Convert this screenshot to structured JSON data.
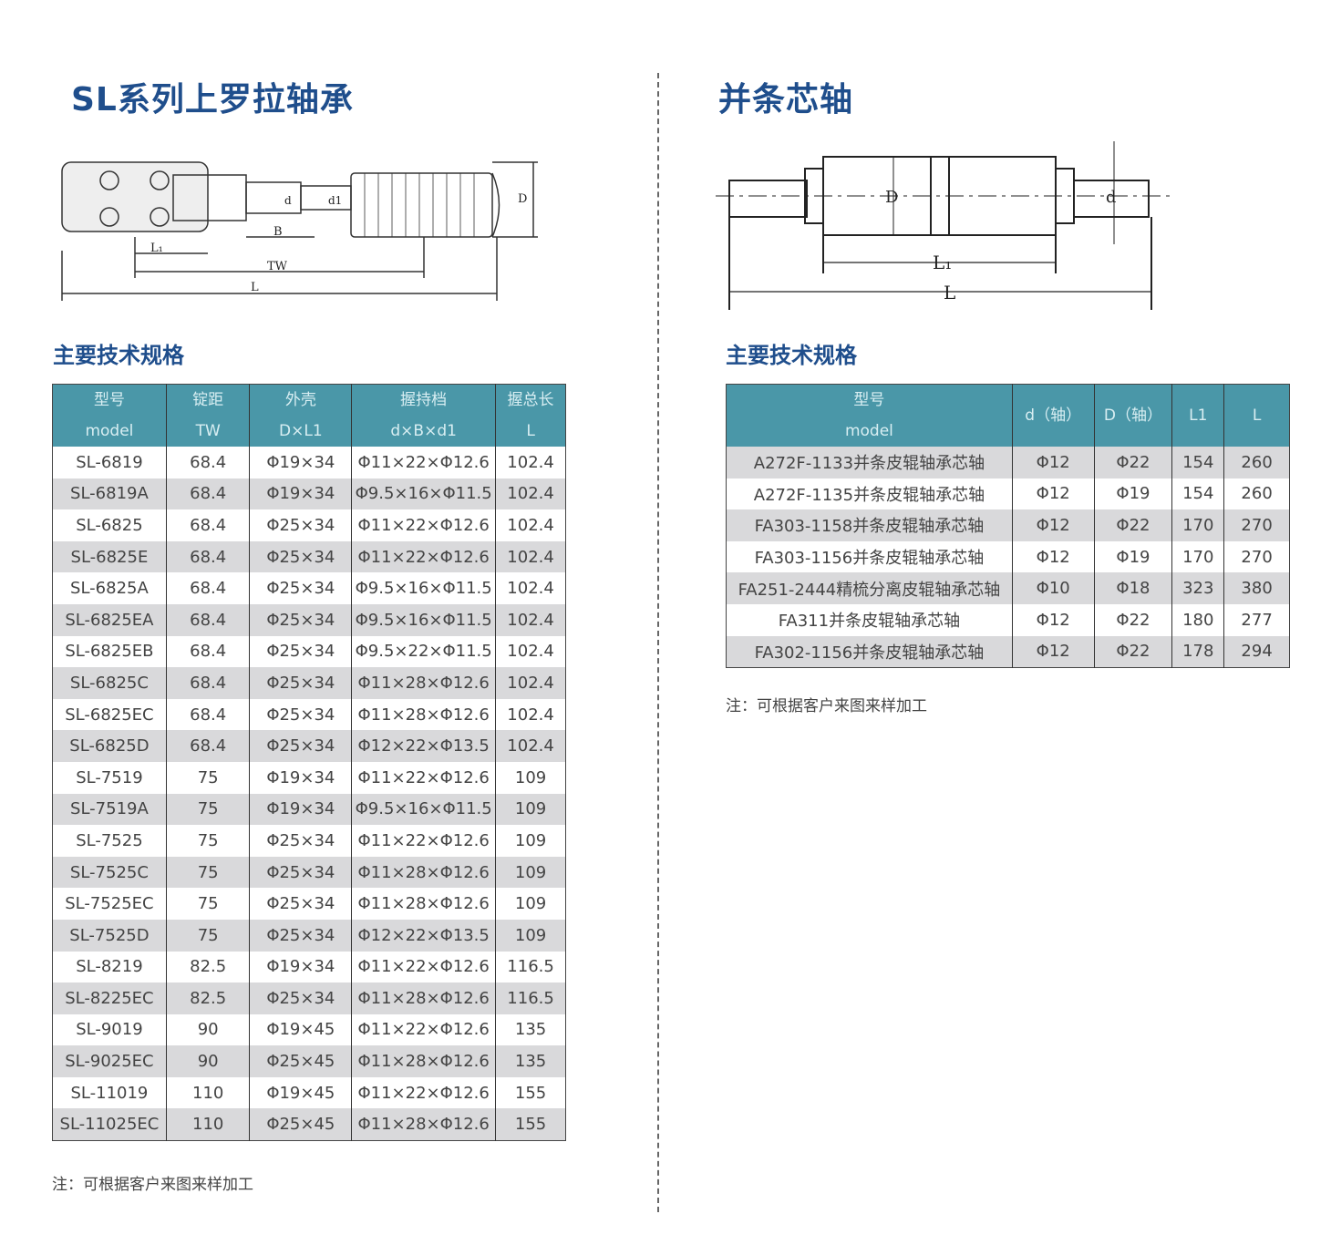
{
  "left": {
    "title": "SL系列上罗拉轴承",
    "diagram_labels": {
      "L1": "L₁",
      "B": "B",
      "TW": "TW",
      "L": "L",
      "d": "d",
      "d1": "d1",
      "D": "D"
    },
    "subtitle": "主要技术规格",
    "headers": [
      [
        "型号",
        "model"
      ],
      [
        "锭距",
        "TW"
      ],
      [
        "外壳",
        "D×L1"
      ],
      [
        "握持档",
        "d×B×d1"
      ],
      [
        "握总长",
        "L"
      ]
    ],
    "rows": [
      [
        "SL-6819",
        "68.4",
        "Φ19×34",
        "Φ11×22×Φ12.6",
        "102.4"
      ],
      [
        "SL-6819A",
        "68.4",
        "Φ19×34",
        "Φ9.5×16×Φ11.5",
        "102.4"
      ],
      [
        "SL-6825",
        "68.4",
        "Φ25×34",
        "Φ11×22×Φ12.6",
        "102.4"
      ],
      [
        "SL-6825E",
        "68.4",
        "Φ25×34",
        "Φ11×22×Φ12.6",
        "102.4"
      ],
      [
        "SL-6825A",
        "68.4",
        "Φ25×34",
        "Φ9.5×16×Φ11.5",
        "102.4"
      ],
      [
        "SL-6825EA",
        "68.4",
        "Φ25×34",
        "Φ9.5×16×Φ11.5",
        "102.4"
      ],
      [
        "SL-6825EB",
        "68.4",
        "Φ25×34",
        "Φ9.5×22×Φ11.5",
        "102.4"
      ],
      [
        "SL-6825C",
        "68.4",
        "Φ25×34",
        "Φ11×28×Φ12.6",
        "102.4"
      ],
      [
        "SL-6825EC",
        "68.4",
        "Φ25×34",
        "Φ11×28×Φ12.6",
        "102.4"
      ],
      [
        "SL-6825D",
        "68.4",
        "Φ25×34",
        "Φ12×22×Φ13.5",
        "102.4"
      ],
      [
        "SL-7519",
        "75",
        "Φ19×34",
        "Φ11×22×Φ12.6",
        "109"
      ],
      [
        "SL-7519A",
        "75",
        "Φ19×34",
        "Φ9.5×16×Φ11.5",
        "109"
      ],
      [
        "SL-7525",
        "75",
        "Φ25×34",
        "Φ11×22×Φ12.6",
        "109"
      ],
      [
        "SL-7525C",
        "75",
        "Φ25×34",
        "Φ11×28×Φ12.6",
        "109"
      ],
      [
        "SL-7525EC",
        "75",
        "Φ25×34",
        "Φ11×28×Φ12.6",
        "109"
      ],
      [
        "SL-7525D",
        "75",
        "Φ25×34",
        "Φ12×22×Φ13.5",
        "109"
      ],
      [
        "SL-8219",
        "82.5",
        "Φ19×34",
        "Φ11×22×Φ12.6",
        "116.5"
      ],
      [
        "SL-8225EC",
        "82.5",
        "Φ25×34",
        "Φ11×28×Φ12.6",
        "116.5"
      ],
      [
        "SL-9019",
        "90",
        "Φ19×45",
        "Φ11×22×Φ12.6",
        "135"
      ],
      [
        "SL-9025EC",
        "90",
        "Φ25×45",
        "Φ11×28×Φ12.6",
        "135"
      ],
      [
        "SL-11019",
        "110",
        "Φ19×45",
        "Φ11×22×Φ12.6",
        "155"
      ],
      [
        "SL-11025EC",
        "110",
        "Φ25×45",
        "Φ11×28×Φ12.6",
        "155"
      ]
    ],
    "note": "注：可根据客户来图来样加工"
  },
  "right": {
    "title": "并条芯轴",
    "diagram_labels": {
      "D": "D",
      "d": "d",
      "L1": "L₁",
      "L": "L"
    },
    "subtitle": "主要技术规格",
    "headers": [
      [
        "型号",
        "model"
      ],
      [
        "d（轴）"
      ],
      [
        "D（轴）"
      ],
      [
        "L1"
      ],
      [
        "L"
      ]
    ],
    "rows": [
      [
        "A272F-1133并条皮辊轴承芯轴",
        "Φ12",
        "Φ22",
        "154",
        "260"
      ],
      [
        "A272F-1135并条皮辊轴承芯轴",
        "Φ12",
        "Φ19",
        "154",
        "260"
      ],
      [
        "FA303-1158并条皮辊轴承芯轴",
        "Φ12",
        "Φ22",
        "170",
        "270"
      ],
      [
        "FA303-1156并条皮辊轴承芯轴",
        "Φ12",
        "Φ19",
        "170",
        "270"
      ],
      [
        "FA251-2444精梳分离皮辊轴承芯轴",
        "Φ10",
        "Φ18",
        "323",
        "380"
      ],
      [
        "FA311并条皮辊轴承芯轴",
        "Φ12",
        "Φ22",
        "180",
        "277"
      ],
      [
        "FA302-1156并条皮辊轴承芯轴",
        "Φ12",
        "Φ22",
        "178",
        "294"
      ]
    ],
    "note": "注：可根据客户来图来样加工"
  },
  "colors": {
    "title": "#1f4e8c",
    "header": "#4a97a8",
    "stripe": "#d9d9db"
  }
}
